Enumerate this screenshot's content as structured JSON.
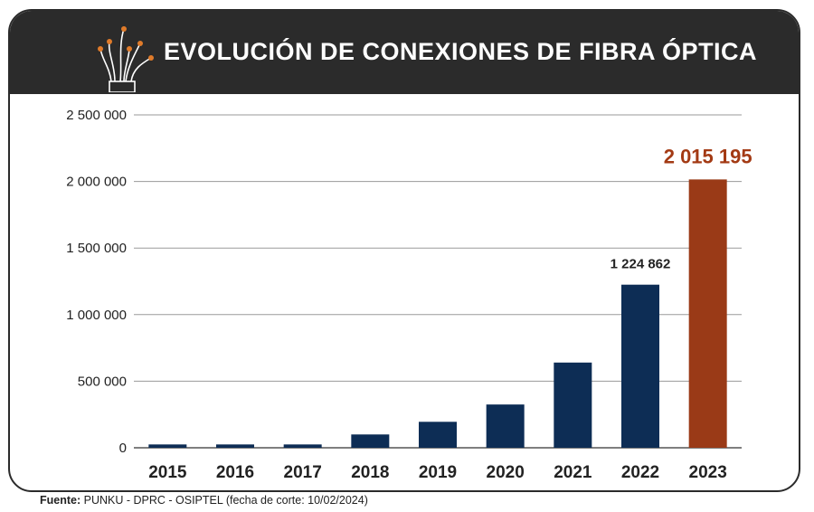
{
  "header": {
    "title": "EVOLUCIÓN DE CONEXIONES  DE FIBRA ÓPTICA",
    "icon": "fiber-optic-icon"
  },
  "source": {
    "label": "Fuente:",
    "text": "PUNKU - DPRC - OSIPTEL (fecha de corte: 10/02/2024)"
  },
  "colors": {
    "header_bg": "#2b2b2b",
    "bar": "#0d2d55",
    "highlight_bar": "#9a3a17",
    "highlight_text": "#a33a14"
  },
  "chart_data": {
    "type": "bar",
    "categories": [
      "2015",
      "2016",
      "2017",
      "2018",
      "2019",
      "2020",
      "2021",
      "2022",
      "2023"
    ],
    "values": [
      25000,
      25000,
      25000,
      100000,
      195000,
      325000,
      640000,
      1224862,
      2015195
    ],
    "highlight_index": 8,
    "ylim": [
      0,
      2500000
    ],
    "yticks": [
      0,
      500000,
      1000000,
      1500000,
      2000000,
      2500000
    ],
    "ytick_labels": [
      "0",
      "500 000",
      "1 000 000",
      "1 500 000",
      "2 000 000",
      "2 500 000"
    ],
    "data_labels": [
      {
        "index": 7,
        "text": "1 224 862"
      },
      {
        "index": 8,
        "text": "2 015 195"
      }
    ],
    "grid": true,
    "title": "EVOLUCIÓN DE CONEXIONES  DE FIBRA ÓPTICA",
    "xlabel": "",
    "ylabel": ""
  }
}
